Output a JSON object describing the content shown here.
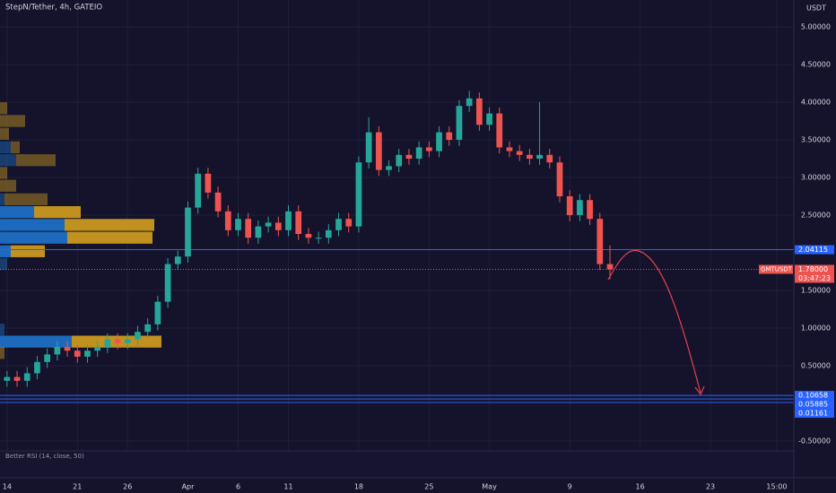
{
  "chart_data": {
    "type": "candlestick",
    "title": "StepN/Tether, 4h, GATEIO",
    "quote_label": "USDT",
    "symbol_label": "GMTUSDT",
    "countdown": "03:47:23",
    "indicator_label": "Better RSI (14, close, 50)",
    "up_color": "#26a69a",
    "down_color": "#ef5350",
    "x": [
      0,
      1,
      2,
      3,
      4,
      5,
      6,
      7,
      8,
      9,
      10,
      11,
      12,
      13,
      14,
      15,
      16,
      17,
      18,
      19,
      20,
      21,
      22,
      23,
      24,
      25,
      26,
      27,
      28,
      29,
      30,
      31,
      32,
      33,
      34,
      35,
      36,
      37,
      38,
      39,
      40,
      41,
      42,
      43,
      44,
      45,
      46,
      47,
      48,
      49,
      50,
      51,
      52,
      53,
      54,
      55,
      56,
      57,
      58,
      59,
      60
    ],
    "open": [
      0.3,
      0.35,
      0.3,
      0.4,
      0.55,
      0.65,
      0.75,
      0.7,
      0.62,
      0.7,
      0.75,
      0.85,
      0.8,
      0.85,
      0.95,
      1.05,
      1.35,
      1.85,
      1.95,
      2.6,
      3.05,
      2.8,
      2.55,
      2.3,
      2.45,
      2.2,
      2.35,
      2.4,
      2.3,
      2.55,
      2.25,
      2.2,
      2.2,
      2.3,
      2.45,
      2.35,
      3.2,
      3.6,
      3.1,
      3.15,
      3.3,
      3.25,
      3.4,
      3.35,
      3.6,
      3.5,
      3.95,
      4.05,
      3.7,
      3.85,
      3.4,
      3.35,
      3.3,
      3.25,
      3.3,
      3.2,
      2.75,
      2.5,
      2.7,
      2.45,
      1.85
    ],
    "high": [
      0.43,
      0.43,
      0.48,
      0.63,
      0.73,
      0.83,
      0.83,
      0.78,
      0.78,
      0.83,
      0.93,
      0.93,
      0.93,
      1.03,
      1.13,
      1.43,
      1.93,
      2.03,
      2.68,
      3.13,
      3.13,
      2.88,
      2.63,
      2.53,
      2.53,
      2.43,
      2.48,
      2.48,
      2.63,
      2.63,
      2.33,
      2.28,
      2.38,
      2.53,
      2.53,
      3.28,
      3.8,
      3.68,
      3.23,
      3.38,
      3.38,
      3.48,
      3.48,
      3.68,
      3.68,
      4.03,
      4.15,
      4.13,
      3.93,
      3.93,
      3.48,
      3.43,
      3.38,
      4.0,
      3.38,
      3.28,
      2.83,
      2.78,
      2.78,
      2.53,
      2.1
    ],
    "low": [
      0.22,
      0.22,
      0.22,
      0.32,
      0.47,
      0.57,
      0.62,
      0.54,
      0.54,
      0.62,
      0.67,
      0.72,
      0.72,
      0.77,
      0.87,
      0.97,
      1.27,
      1.77,
      1.87,
      2.52,
      2.72,
      2.47,
      2.22,
      2.22,
      2.12,
      2.12,
      2.27,
      2.22,
      2.22,
      2.17,
      2.12,
      2.12,
      2.12,
      2.22,
      2.27,
      2.27,
      3.12,
      3.02,
      3.02,
      3.07,
      3.17,
      3.17,
      3.27,
      3.27,
      3.42,
      3.42,
      3.87,
      3.62,
      3.62,
      3.32,
      3.27,
      3.22,
      3.17,
      3.17,
      3.12,
      2.67,
      2.42,
      2.42,
      2.37,
      1.77,
      1.65
    ],
    "close": [
      0.35,
      0.3,
      0.4,
      0.55,
      0.65,
      0.75,
      0.7,
      0.62,
      0.7,
      0.75,
      0.85,
      0.8,
      0.85,
      0.95,
      1.05,
      1.35,
      1.85,
      1.95,
      2.6,
      3.05,
      2.8,
      2.55,
      2.3,
      2.45,
      2.2,
      2.35,
      2.4,
      2.3,
      2.55,
      2.25,
      2.2,
      2.2,
      2.3,
      2.45,
      2.35,
      3.2,
      3.6,
      3.1,
      3.15,
      3.3,
      3.25,
      3.4,
      3.35,
      3.6,
      3.5,
      3.95,
      4.05,
      3.7,
      3.85,
      3.4,
      3.35,
      3.3,
      3.25,
      3.3,
      3.2,
      2.75,
      2.5,
      2.7,
      2.45,
      1.85,
      1.78
    ],
    "xlim": [
      -0.7,
      78.3
    ],
    "xticks": [
      {
        "value": 0,
        "label": "14"
      },
      {
        "value": 7,
        "label": "21"
      },
      {
        "value": 12,
        "label": "26"
      },
      {
        "value": 18,
        "label": "Apr"
      },
      {
        "value": 23,
        "label": "6"
      },
      {
        "value": 28,
        "label": "11"
      },
      {
        "value": 35,
        "label": "18"
      },
      {
        "value": 42,
        "label": "25"
      },
      {
        "value": 48,
        "label": "May"
      },
      {
        "value": 56,
        "label": "9"
      },
      {
        "value": 63,
        "label": "16"
      },
      {
        "value": 70,
        "label": "23"
      },
      {
        "value": 76.6,
        "label": "15:00"
      }
    ],
    "ylim": [
      -0.595,
      5.357
    ],
    "yticks": [
      {
        "value": 5,
        "label": "5.00000"
      },
      {
        "value": 4.5,
        "label": "4.50000"
      },
      {
        "value": 4,
        "label": "4.00000"
      },
      {
        "value": 3.5,
        "label": "3.50000"
      },
      {
        "value": 3,
        "label": "3.00000"
      },
      {
        "value": 2.5,
        "label": "2.50000"
      },
      {
        "value": 1.5,
        "label": "1.50000"
      },
      {
        "value": 1,
        "label": "1.00000"
      },
      {
        "value": 0.5,
        "label": "0.50000"
      },
      {
        "value": -0.5,
        "label": "-0.50000"
      }
    ],
    "grid": true,
    "levels": {
      "values": [
        2.04115,
        0.10658,
        0.05885,
        0.01161
      ],
      "color": "#2962ff"
    },
    "last_price": {
      "value": 1.78,
      "label": "1.78000",
      "color": "#ef5350"
    },
    "volume_profile": {
      "prices": [
        3.92,
        3.75,
        3.58,
        3.4,
        3.23,
        3.06,
        2.89,
        2.71,
        2.54,
        2.37,
        2.2,
        2.02,
        1.85,
        0.98,
        0.82,
        0.67
      ],
      "buy": [
        0,
        0,
        0,
        12,
        18,
        0,
        0,
        5,
        38,
        72,
        75,
        12,
        8,
        5,
        80,
        0
      ],
      "sell": [
        8,
        28,
        10,
        10,
        44,
        8,
        18,
        48,
        52,
        100,
        95,
        38,
        0,
        0,
        100,
        5
      ],
      "row_size": 0.17,
      "buy_color": "#1e6fc4",
      "sell_color": "#c9981f",
      "value_areas": [
        [
          1.95,
          2.6
        ],
        [
          0.75,
          0.9
        ]
      ]
    }
  }
}
